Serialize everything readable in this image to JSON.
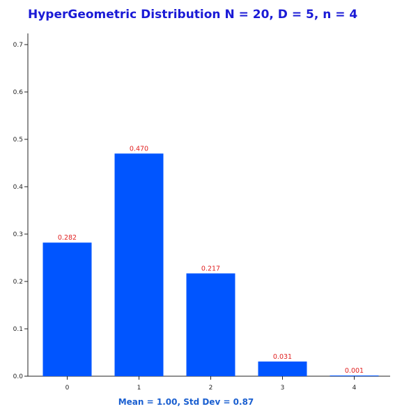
{
  "chart_data": {
    "type": "bar",
    "title": "HyperGeometric Distribution N = 20, D = 5, n = 4",
    "xlabel": "",
    "ylabel": "",
    "footer": "Mean = 1.00, Std Dev = 0.87",
    "categories": [
      "0",
      "1",
      "2",
      "3",
      "4"
    ],
    "values": [
      0.282,
      0.47,
      0.217,
      0.031,
      0.001
    ],
    "value_labels": [
      "0.282",
      "0.470",
      "0.217",
      "0.031",
      "0.001"
    ],
    "ylim": [
      0,
      0.7
    ],
    "yticks": [
      "0.0",
      "0.1",
      "0.2",
      "0.3",
      "0.4",
      "0.5",
      "0.6",
      "0.7"
    ],
    "grid": false,
    "legend": "none"
  },
  "colors": {
    "title": "#1a1ad6",
    "bar": "#0055ff",
    "value_label": "#e02020",
    "footer": "#1a5fd0",
    "axis": "#222222"
  }
}
